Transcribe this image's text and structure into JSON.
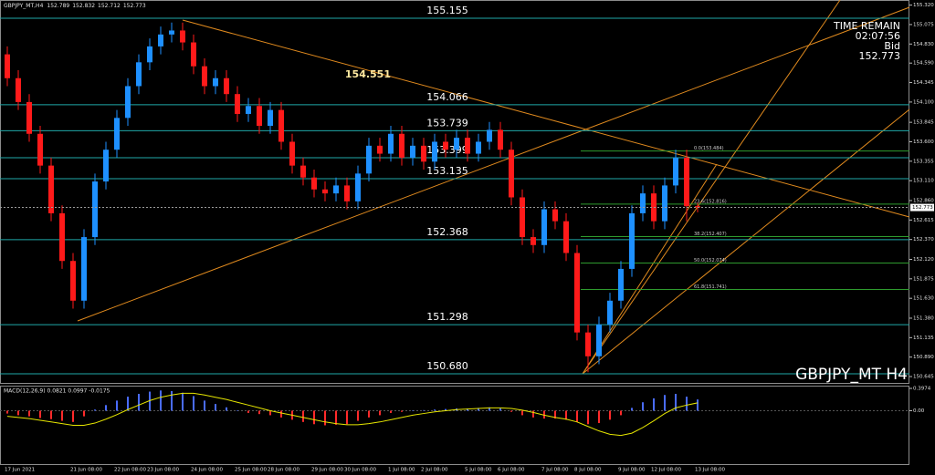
{
  "chart_data": {
    "type": "candlestick",
    "title": "GBPJPY_MT,H4",
    "categories": [
      "17 Jun 2021",
      null,
      null,
      null,
      null,
      null,
      "21 Jun 08:00",
      null,
      null,
      null,
      "22 Jun 08:00",
      null,
      null,
      "23 Jun 08:00",
      null,
      null,
      null,
      "24 Jun 08:00",
      null,
      null,
      null,
      "25 Jun 08:00",
      null,
      null,
      "28 Jun 08:00",
      null,
      null,
      null,
      "29 Jun 08:00",
      null,
      null,
      "30 Jun 08:00",
      null,
      null,
      null,
      "1 Jul 08:00",
      null,
      null,
      "2 Jul 08:00",
      null,
      null,
      null,
      "5 Jul 08:00",
      null,
      null,
      "6 Jul 08:00",
      null,
      null,
      null,
      "7 Jul 08:00",
      null,
      null,
      "8 Jul 08:00",
      null,
      null,
      null,
      "9 Jul 08:00",
      null,
      null,
      "12 Jul 08:00",
      null,
      null,
      null,
      "13 Jul 08:00"
    ],
    "open": [
      154.7,
      154.4,
      154.1,
      153.7,
      153.3,
      152.7,
      152.1,
      151.6,
      152.4,
      153.1,
      153.5,
      153.9,
      154.3,
      154.6,
      154.8,
      154.95,
      155.0,
      154.85,
      154.55,
      154.3,
      154.4,
      154.2,
      153.95,
      154.05,
      153.8,
      154.0,
      153.6,
      153.3,
      153.15,
      153.0,
      152.95,
      153.05,
      152.85,
      153.2,
      153.55,
      153.45,
      153.7,
      153.4,
      153.55,
      153.35,
      153.6,
      153.5,
      153.65,
      153.45,
      153.6,
      153.75,
      153.5,
      152.9,
      152.4,
      152.3,
      152.75,
      152.6,
      152.2,
      151.2,
      150.9,
      151.3,
      151.6,
      152.0,
      152.7,
      152.95,
      152.6,
      153.05,
      153.4,
      152.789
    ],
    "high": [
      154.8,
      154.5,
      154.2,
      153.8,
      153.4,
      152.8,
      152.2,
      152.5,
      153.2,
      153.6,
      154.0,
      154.4,
      154.7,
      154.9,
      155.05,
      155.1,
      155.1,
      154.95,
      154.65,
      154.5,
      154.5,
      154.3,
      154.15,
      154.15,
      154.1,
      154.1,
      153.7,
      153.4,
      153.25,
      153.1,
      153.15,
      153.15,
      153.3,
      153.65,
      153.65,
      153.8,
      153.8,
      153.65,
      153.65,
      153.7,
      153.7,
      153.75,
      153.75,
      153.7,
      153.85,
      153.85,
      153.6,
      153.0,
      152.5,
      152.85,
      152.85,
      152.7,
      152.3,
      151.3,
      151.4,
      151.7,
      152.1,
      152.8,
      153.05,
      153.05,
      153.15,
      153.5,
      153.5,
      152.832
    ],
    "low": [
      154.3,
      154.0,
      153.6,
      153.2,
      152.6,
      152.0,
      151.5,
      151.5,
      152.3,
      153.0,
      153.4,
      153.8,
      154.2,
      154.5,
      154.7,
      154.85,
      154.75,
      154.45,
      154.2,
      154.2,
      154.1,
      153.85,
      153.85,
      153.7,
      153.7,
      153.5,
      153.2,
      153.05,
      152.9,
      152.85,
      152.85,
      152.75,
      152.75,
      153.1,
      153.35,
      153.35,
      153.3,
      153.3,
      153.25,
      153.25,
      153.4,
      153.4,
      153.35,
      153.35,
      153.5,
      153.4,
      152.8,
      152.3,
      152.2,
      152.2,
      152.5,
      152.1,
      151.1,
      150.7,
      150.8,
      151.2,
      151.5,
      151.9,
      152.6,
      152.5,
      152.5,
      152.95,
      152.6,
      152.712
    ],
    "close": [
      154.4,
      154.1,
      153.7,
      153.3,
      152.7,
      152.1,
      151.6,
      152.4,
      153.1,
      153.5,
      153.9,
      154.3,
      154.6,
      154.8,
      154.95,
      155.0,
      154.85,
      154.55,
      154.3,
      154.4,
      154.2,
      153.95,
      154.05,
      153.8,
      154.0,
      153.6,
      153.3,
      153.15,
      153.0,
      152.95,
      153.05,
      152.85,
      153.2,
      153.55,
      153.45,
      153.7,
      153.4,
      153.55,
      153.35,
      153.6,
      153.5,
      153.65,
      153.45,
      153.6,
      153.75,
      153.5,
      152.9,
      152.4,
      152.3,
      152.75,
      152.6,
      152.2,
      151.2,
      150.9,
      151.3,
      151.6,
      152.0,
      152.7,
      152.95,
      152.6,
      153.05,
      153.4,
      152.789,
      152.773
    ],
    "up_color": "#1e90ff",
    "down_color": "#ff1a1a",
    "ylim": [
      150.565,
      155.384
    ],
    "yticks": [
      {
        "value": 155.32,
        "label": "155.320"
      },
      155.075,
      {
        "value": 154.83,
        "label": "154.830"
      },
      {
        "value": 154.59,
        "label": "154.590"
      },
      154.345,
      {
        "value": 154.1,
        "label": "154.100"
      },
      153.845,
      {
        "value": 153.6,
        "label": "153.600"
      },
      153.355,
      {
        "value": 153.11,
        "label": "153.110"
      },
      {
        "value": 152.86,
        "label": "152.860"
      },
      152.615,
      {
        "value": 152.37,
        "label": "152.370"
      },
      {
        "value": 152.12,
        "label": "152.120"
      },
      151.875,
      {
        "value": 151.63,
        "label": "151.630"
      },
      {
        "value": 151.38,
        "label": "151.380"
      },
      151.135,
      {
        "value": 150.89,
        "label": "150.890"
      },
      150.645
    ],
    "levels": [
      155.155,
      154.066,
      153.739,
      153.399,
      153.135,
      152.368,
      151.298,
      {
        "value": 150.68,
        "label": "150.680"
      }
    ],
    "level_color": "#1fa8a8",
    "fib_levels": [
      {
        "value": 153.484,
        "label": "0.0(153.484)"
      },
      {
        "value": 152.816,
        "label": "23.6(152.816)"
      },
      {
        "value": 152.407,
        "label": "38.2(152.407)"
      },
      {
        "value": 152.074,
        "label": "50.0(152.074)"
      },
      {
        "value": 151.741,
        "label": "61.8(151.741)"
      }
    ],
    "fib_color": "#2e9b2e",
    "annotation": "154.551",
    "time_remain_label": "TIME REMAIN",
    "time_remain": "02:07:56",
    "bid_label": "Bid",
    "watermark": "GBPJPY_MT H4",
    "macd": {
      "label": "MACD(12,26,9) 0.0821 0.0997 -0.0175",
      "histogram": [
        -0.05,
        -0.08,
        -0.1,
        -0.13,
        -0.15,
        -0.18,
        -0.2,
        -0.1,
        0.02,
        0.1,
        0.18,
        0.25,
        0.3,
        0.34,
        0.36,
        0.35,
        0.32,
        0.26,
        0.18,
        0.12,
        0.06,
        0.0,
        -0.04,
        -0.06,
        -0.08,
        -0.12,
        -0.16,
        -0.2,
        -0.24,
        -0.26,
        -0.25,
        -0.24,
        -0.18,
        -0.12,
        -0.08,
        -0.04,
        -0.02,
        0.0,
        0.01,
        0.02,
        0.03,
        0.04,
        0.04,
        0.05,
        0.06,
        0.04,
        -0.02,
        -0.08,
        -0.12,
        -0.14,
        -0.14,
        -0.16,
        -0.2,
        -0.24,
        -0.22,
        -0.16,
        -0.08,
        0.05,
        0.15,
        0.22,
        0.28,
        0.3,
        0.25,
        0.2
      ],
      "signal": [
        -0.1,
        -0.12,
        -0.14,
        -0.17,
        -0.2,
        -0.23,
        -0.26,
        -0.26,
        -0.22,
        -0.15,
        -0.07,
        0.02,
        0.1,
        0.18,
        0.24,
        0.28,
        0.31,
        0.31,
        0.28,
        0.24,
        0.2,
        0.15,
        0.1,
        0.05,
        0.0,
        -0.04,
        -0.08,
        -0.12,
        -0.16,
        -0.2,
        -0.23,
        -0.25,
        -0.25,
        -0.23,
        -0.2,
        -0.16,
        -0.12,
        -0.08,
        -0.05,
        -0.02,
        0.0,
        0.02,
        0.03,
        0.04,
        0.05,
        0.05,
        0.04,
        0.01,
        -0.03,
        -0.08,
        -0.12,
        -0.15,
        -0.2,
        -0.28,
        -0.36,
        -0.42,
        -0.44,
        -0.4,
        -0.3,
        -0.18,
        -0.05,
        0.05,
        0.1,
        0.14
      ],
      "ylim": [
        -0.95,
        0.43
      ],
      "yticks": [
        0.3974,
        {
          "value": 0,
          "label": "0.00"
        }
      ],
      "hist_up_color": "#4a6cff",
      "hist_down_color": "#ff2a2a",
      "signal_color": "#e6e600"
    }
  }
}
